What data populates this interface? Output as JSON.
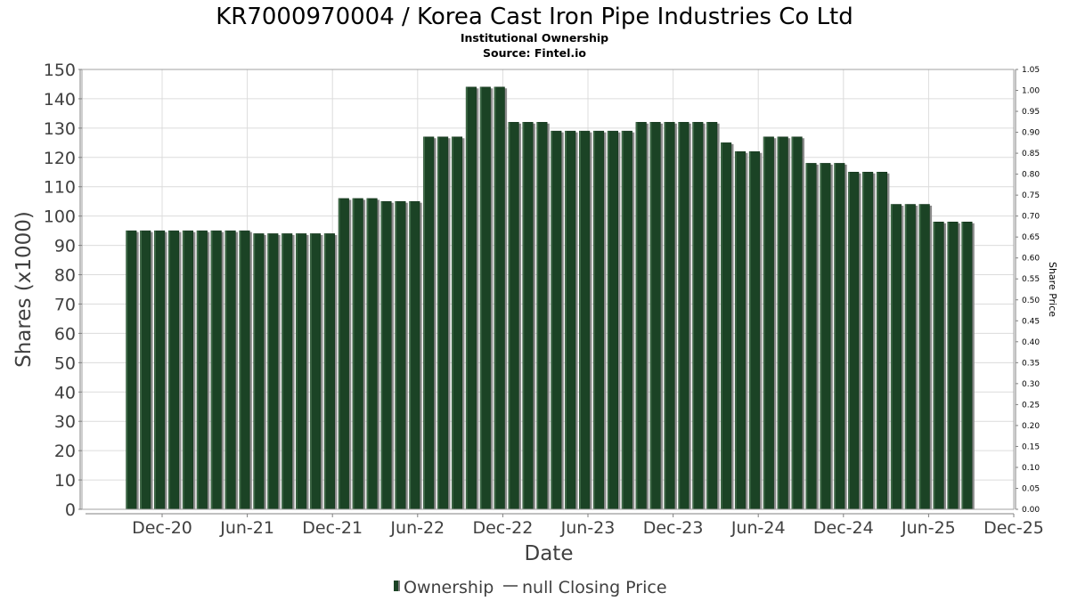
{
  "chart_data": {
    "type": "bar",
    "title": "KR7000970004 / Korea Cast Iron Pipe Industries Co Ltd",
    "subtitle_lines": [
      "Institutional Ownership",
      "Source: Fintel.io"
    ],
    "xlabel": "Date",
    "ylabel": "Shares (x1000)",
    "ylabel_right": "Share Price",
    "ylim": [
      0,
      150
    ],
    "ylim_right": [
      0.0,
      1.05
    ],
    "yticks": [
      "0",
      "10",
      "20",
      "30",
      "40",
      "50",
      "60",
      "70",
      "80",
      "90",
      "100",
      "110",
      "120",
      "130",
      "140",
      "150"
    ],
    "yticks_right": [
      "0.00",
      "0.05",
      "0.10",
      "0.15",
      "0.20",
      "0.25",
      "0.30",
      "0.35",
      "0.40",
      "0.45",
      "0.50",
      "0.55",
      "0.60",
      "0.65",
      "0.70",
      "0.75",
      "0.80",
      "0.85",
      "0.90",
      "0.95",
      "1.00",
      "1.05"
    ],
    "xticks": [
      "Dec-20",
      "Jun-21",
      "Dec-21",
      "Jun-22",
      "Dec-22",
      "Jun-23",
      "Dec-23",
      "Jun-24",
      "Dec-24",
      "Jun-25",
      "Dec-25"
    ],
    "grid": true,
    "legend_position": "bottom",
    "series": [
      {
        "name": "Ownership",
        "color": "#1b4325",
        "values": [
          95,
          95,
          95,
          95,
          95,
          95,
          95,
          95,
          95,
          94,
          94,
          94,
          94,
          94,
          94,
          106,
          106,
          106,
          105,
          105,
          105,
          127,
          127,
          127,
          144,
          144,
          144,
          132,
          132,
          132,
          129,
          129,
          129,
          129,
          129,
          129,
          132,
          132,
          132,
          132,
          132,
          132,
          125,
          122,
          122,
          127,
          127,
          127,
          118,
          118,
          118,
          115,
          115,
          115,
          104,
          104,
          104,
          98,
          98,
          98
        ]
      },
      {
        "name": "null Closing Price",
        "color": "#404040",
        "values": []
      }
    ]
  }
}
